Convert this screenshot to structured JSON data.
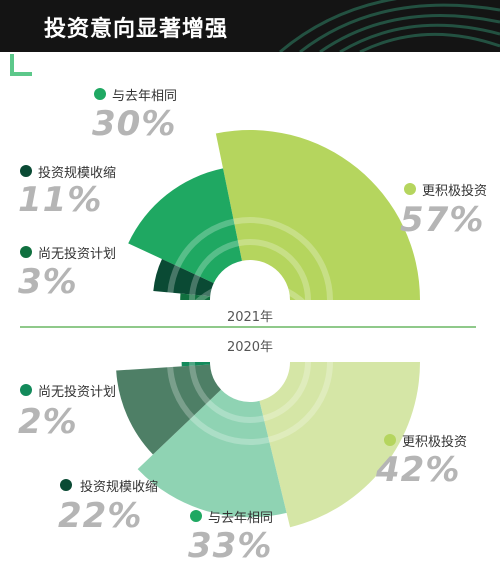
{
  "title": "投资意向显著增强",
  "chart_data": [
    {
      "type": "pie",
      "year_label": "2021年",
      "categories": [
        "更积极投资",
        "与去年相同",
        "投资规模收缩",
        "尚无投资计划"
      ],
      "values": [
        57,
        30,
        11,
        3
      ],
      "value_labels": [
        "57%",
        "30%",
        "11%",
        "3%"
      ],
      "colors": [
        "#b5d55e",
        "#1fa862",
        "#0a4a34",
        "#10703f"
      ]
    },
    {
      "type": "pie",
      "year_label": "2020年",
      "categories": [
        "更积极投资",
        "与去年相同",
        "投资规模收缩",
        "尚无投资计划"
      ],
      "values": [
        42,
        33,
        22,
        2
      ],
      "value_labels": [
        "42%",
        "33%",
        "22%",
        "2%"
      ],
      "colors": [
        "#d5e6a6",
        "#8fd3b3",
        "#4e7f66",
        "#138a5b"
      ]
    }
  ],
  "legend_colors": {
    "more_active": "#b5d55e",
    "same": "#1fa862",
    "shrink": "#0a4a34",
    "none": "#10703f"
  }
}
